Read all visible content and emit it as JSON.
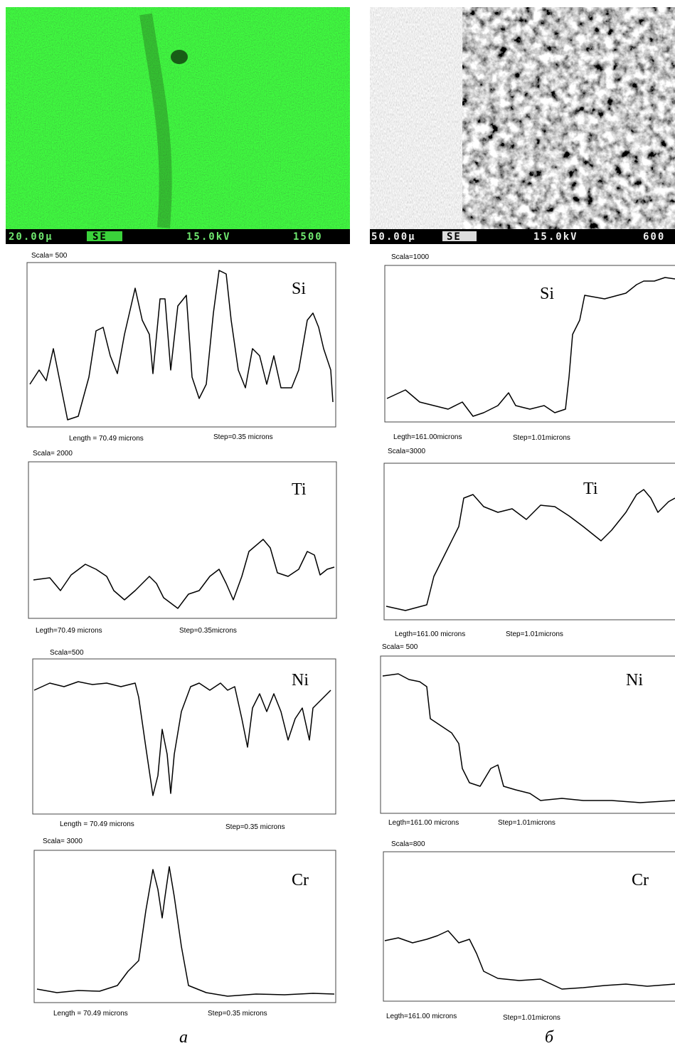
{
  "columns": [
    {
      "image": {
        "scale": "20.00μ",
        "mode": "SE",
        "voltage": "15.0kV",
        "magnification": "1500"
      },
      "profiles": [
        {
          "scala": "Scala= 500",
          "element": "Si",
          "length": "Length = 70.49 microns",
          "step": "Step=0.35 microns"
        },
        {
          "scala": "Scala= 2000",
          "element": "Ti",
          "length": "Legth=70.49 microns",
          "step": "Step=0.35microns"
        },
        {
          "scala": "Scala=500",
          "element": "Ni",
          "length": "Length = 70.49 microns",
          "step": "Step=0.35 microns"
        },
        {
          "scala": "Scala= 3000",
          "element": "Cr",
          "length": "Length = 70.49 microns",
          "step": "Step=0.35 microns"
        }
      ],
      "caption": "a"
    },
    {
      "image": {
        "scale": "50.00μ",
        "mode": "SE",
        "voltage": "15.0kV",
        "magnification": "600"
      },
      "profiles": [
        {
          "scala": "Scala=1000",
          "element": "Si",
          "length": "Legth=161.00microns",
          "step": "Step=1.01microns"
        },
        {
          "scala": "Scala=3000",
          "element": "Ti",
          "length": "Legth=161.00 microns",
          "step": "Step=1.01microns"
        },
        {
          "scala": "Scala= 500",
          "element": "Ni",
          "length": "Legth=161.00 microns",
          "step": "Step=1.01microns"
        },
        {
          "scala": "Scala=800",
          "element": "Cr",
          "length": "Legth=161.00 microns",
          "step": "Step=1.01microns"
        }
      ],
      "caption": "б"
    }
  ]
}
